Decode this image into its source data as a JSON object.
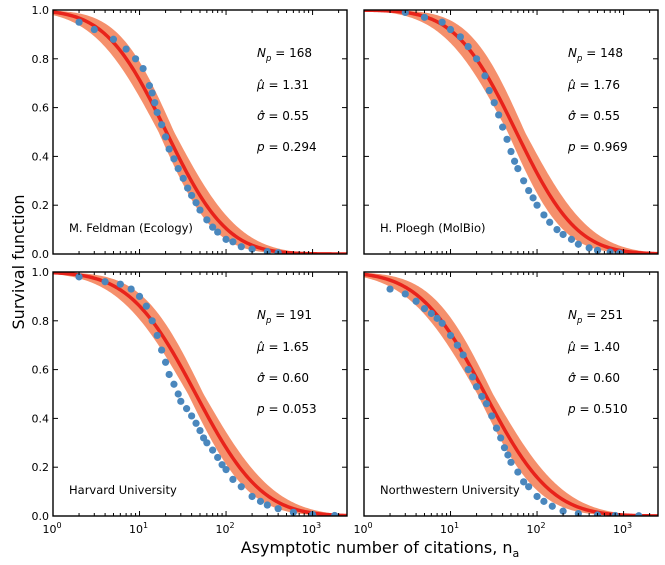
{
  "figure": {
    "ylabel": "Survival function",
    "xlabel": "Asymptotic number of citations, n",
    "xlabel_sub": "a"
  },
  "chart_data": [
    {
      "type": "scatter",
      "panel_label": "M. Feldman (Ecology)",
      "xscale": "log",
      "xlim": [
        1,
        2500
      ],
      "ylim": [
        0,
        1
      ],
      "yticks": [
        "0.0",
        "0.2",
        "0.4",
        "0.6",
        "0.8",
        "1.0"
      ],
      "xticks": [
        1,
        10,
        100,
        1000
      ],
      "stats": {
        "Np_label": "N",
        "Np_sub": "p",
        "Np": "168",
        "mu": "1.31",
        "sigma": "0.55",
        "p": "0.294"
      },
      "fit": {
        "mu": 1.31,
        "sigma": 0.55
      },
      "band": {
        "mu_low": 1.22,
        "mu_high": 1.4,
        "sigma_low": 0.5,
        "sigma_high": 0.6
      },
      "series": [
        {
          "name": "data",
          "x": [
            2,
            3,
            5,
            7,
            9,
            11,
            13,
            14,
            15,
            16,
            18,
            20,
            22,
            25,
            28,
            32,
            36,
            40,
            45,
            50,
            60,
            70,
            80,
            100,
            120,
            150,
            200,
            300,
            400
          ],
          "y": [
            0.95,
            0.92,
            0.88,
            0.84,
            0.8,
            0.76,
            0.69,
            0.66,
            0.62,
            0.58,
            0.53,
            0.48,
            0.43,
            0.39,
            0.35,
            0.31,
            0.27,
            0.24,
            0.21,
            0.18,
            0.14,
            0.11,
            0.09,
            0.06,
            0.05,
            0.03,
            0.02,
            0.01,
            0.005
          ]
        }
      ]
    },
    {
      "type": "scatter",
      "panel_label": "H. Ploegh (MolBio)",
      "xscale": "log",
      "xlim": [
        1,
        2500
      ],
      "ylim": [
        0,
        1
      ],
      "yticks": [
        "0.0",
        "0.2",
        "0.4",
        "0.6",
        "0.8",
        "1.0"
      ],
      "xticks": [
        1,
        10,
        100,
        1000
      ],
      "stats": {
        "Np_label": "N",
        "Np_sub": "p",
        "Np": "148",
        "mu": "1.76",
        "sigma": "0.55",
        "p": "0.969"
      },
      "fit": {
        "mu": 1.76,
        "sigma": 0.55
      },
      "band": {
        "mu_low": 1.66,
        "mu_high": 1.86,
        "sigma_low": 0.5,
        "sigma_high": 0.6
      },
      "series": [
        {
          "name": "data",
          "x": [
            3,
            5,
            8,
            10,
            13,
            16,
            20,
            25,
            28,
            32,
            36,
            40,
            45,
            50,
            55,
            60,
            70,
            80,
            90,
            100,
            120,
            140,
            170,
            200,
            250,
            300,
            400,
            500,
            700,
            900
          ],
          "y": [
            0.99,
            0.97,
            0.95,
            0.92,
            0.89,
            0.85,
            0.8,
            0.73,
            0.67,
            0.62,
            0.57,
            0.52,
            0.47,
            0.42,
            0.38,
            0.35,
            0.3,
            0.26,
            0.23,
            0.2,
            0.16,
            0.13,
            0.1,
            0.08,
            0.06,
            0.04,
            0.025,
            0.015,
            0.008,
            0.004
          ]
        }
      ]
    },
    {
      "type": "scatter",
      "panel_label": "Harvard University",
      "xscale": "log",
      "xlim": [
        1,
        2500
      ],
      "ylim": [
        0,
        1
      ],
      "yticks": [
        "0.0",
        "0.2",
        "0.4",
        "0.6",
        "0.8",
        "1.0"
      ],
      "xticks": [
        1,
        10,
        100,
        1000
      ],
      "stats": {
        "Np_label": "N",
        "Np_sub": "p",
        "Np": "191",
        "mu": "1.65",
        "sigma": "0.60",
        "p": "0.053"
      },
      "fit": {
        "mu": 1.65,
        "sigma": 0.6
      },
      "band": {
        "mu_low": 1.56,
        "mu_high": 1.74,
        "sigma_low": 0.55,
        "sigma_high": 0.65
      },
      "series": [
        {
          "name": "data",
          "x": [
            2,
            4,
            6,
            8,
            10,
            12,
            14,
            16,
            18,
            20,
            22,
            25,
            28,
            30,
            35,
            40,
            45,
            50,
            55,
            60,
            70,
            80,
            90,
            100,
            120,
            150,
            200,
            250,
            300,
            400,
            600,
            1000,
            1800
          ],
          "y": [
            0.98,
            0.96,
            0.95,
            0.93,
            0.9,
            0.86,
            0.8,
            0.74,
            0.68,
            0.63,
            0.58,
            0.54,
            0.5,
            0.47,
            0.44,
            0.41,
            0.38,
            0.35,
            0.32,
            0.3,
            0.27,
            0.24,
            0.21,
            0.19,
            0.15,
            0.12,
            0.08,
            0.06,
            0.045,
            0.03,
            0.015,
            0.006,
            0.002
          ]
        }
      ]
    },
    {
      "type": "scatter",
      "panel_label": "Northwestern University",
      "xscale": "log",
      "xlim": [
        1,
        2500
      ],
      "ylim": [
        0,
        1
      ],
      "yticks": [
        "0.0",
        "0.2",
        "0.4",
        "0.6",
        "0.8",
        "1.0"
      ],
      "xticks": [
        1,
        10,
        100,
        1000
      ],
      "stats": {
        "Np_label": "N",
        "Np_sub": "p",
        "Np": "251",
        "mu": "1.40",
        "sigma": "0.60",
        "p": "0.510"
      },
      "fit": {
        "mu": 1.4,
        "sigma": 0.6
      },
      "band": {
        "mu_low": 1.31,
        "mu_high": 1.49,
        "sigma_low": 0.55,
        "sigma_high": 0.65
      },
      "series": [
        {
          "name": "data",
          "x": [
            2,
            3,
            4,
            5,
            6,
            7,
            8,
            10,
            12,
            14,
            16,
            18,
            20,
            23,
            26,
            30,
            34,
            38,
            42,
            46,
            50,
            60,
            70,
            80,
            100,
            120,
            150,
            200,
            300,
            500,
            800,
            1500
          ],
          "y": [
            0.93,
            0.91,
            0.88,
            0.85,
            0.83,
            0.81,
            0.79,
            0.74,
            0.7,
            0.66,
            0.6,
            0.57,
            0.53,
            0.49,
            0.46,
            0.41,
            0.36,
            0.32,
            0.28,
            0.25,
            0.22,
            0.18,
            0.14,
            0.12,
            0.08,
            0.06,
            0.04,
            0.02,
            0.01,
            0.004,
            0.002,
            0.001
          ]
        }
      ]
    }
  ]
}
